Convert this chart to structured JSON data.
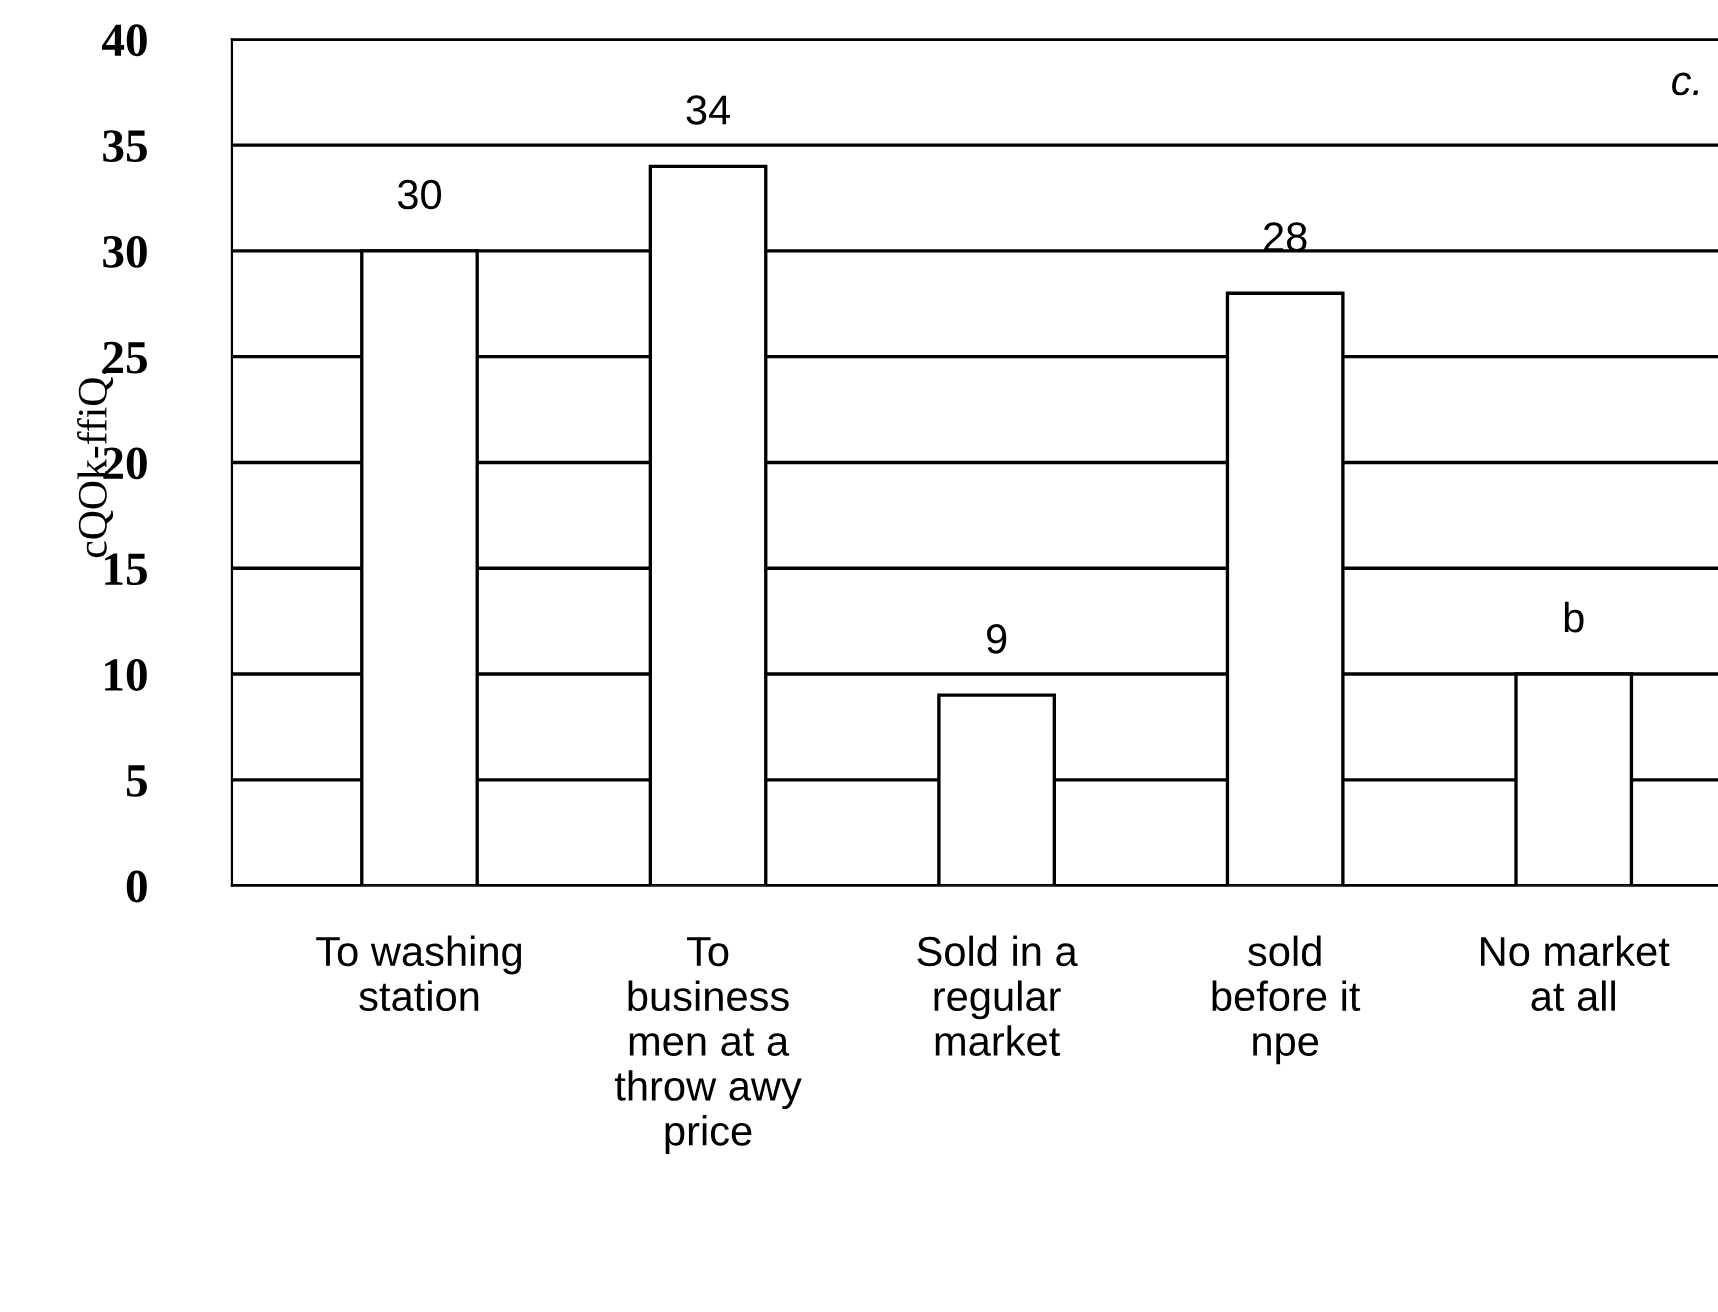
{
  "chart_data": {
    "type": "bar",
    "ylabel": "cQOk-ffiQ.",
    "categories": [
      "To washing station",
      "To business men at a throw awy price",
      "Sold in a regular market",
      "sold before it npe",
      "No market at all"
    ],
    "values": [
      30,
      34,
      9,
      28,
      10
    ],
    "value_labels": [
      "30",
      "34",
      "9",
      "28",
      "b"
    ],
    "color": "#ffffff",
    "annotations": [
      "c."
    ],
    "ylim": [
      0,
      40
    ],
    "yticks": [
      0,
      5,
      10,
      15,
      20,
      25,
      30,
      35,
      40
    ],
    "grid": "y"
  }
}
